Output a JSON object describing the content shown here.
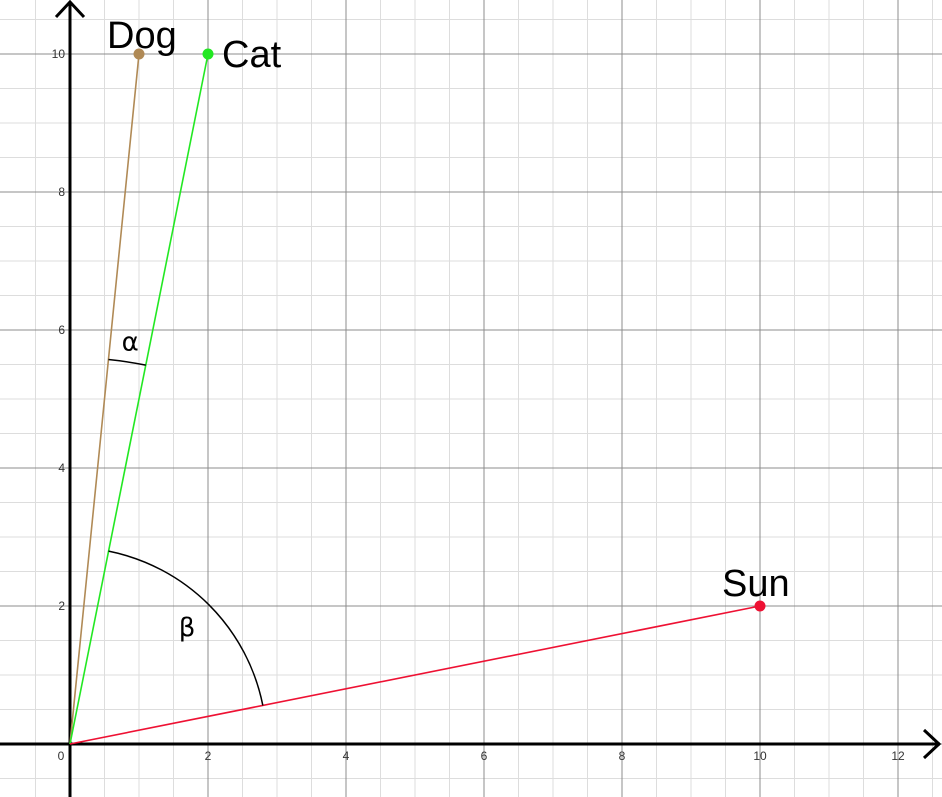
{
  "chart_data": {
    "type": "scatter",
    "title": "",
    "xlabel": "",
    "ylabel": "",
    "xlim": [
      -0.5,
      12.6
    ],
    "ylim": [
      -0.75,
      10.8
    ],
    "grid": true,
    "x_ticks": [
      "0",
      "2",
      "4",
      "6",
      "8",
      "10",
      "12"
    ],
    "y_ticks": [
      "2",
      "4",
      "6",
      "8",
      "10"
    ],
    "points": [
      {
        "label": "Dog",
        "x": 1,
        "y": 10,
        "color": "#b08a56"
      },
      {
        "label": "Cat",
        "x": 2,
        "y": 10,
        "color": "#22e822"
      },
      {
        "label": "Sun",
        "x": 10,
        "y": 2,
        "color": "#ee1133"
      }
    ],
    "segments_from_origin": [
      "Dog",
      "Cat",
      "Sun"
    ],
    "angles": [
      {
        "label": "α",
        "from": "Dog",
        "to": "Cat"
      },
      {
        "label": "β",
        "from": "Cat",
        "to": "Sun"
      }
    ]
  }
}
